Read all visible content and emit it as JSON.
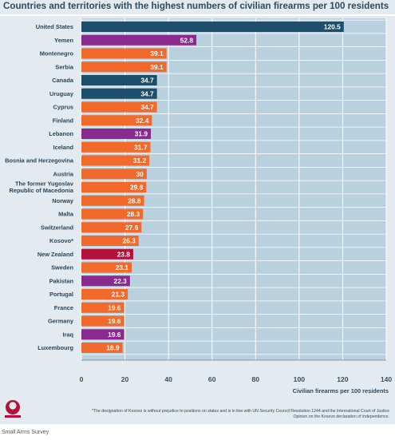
{
  "title": "Countries and territories with the highest numbers of civilian firearms per 100 residents",
  "footnote": "*The designation of Kosovo is without prejudice to positions on status and is in line with UN Security Council Resolution 1244 and the International Court of Justice Opinion on the Kosovo declaration of independence.",
  "source": "Small Arms Survey",
  "colors": {
    "navy": "#1d4e6b",
    "purple": "#8a2a8f",
    "orange": "#f26a2b",
    "crimson": "#b3103c",
    "plot_bg": "#b9d0de",
    "frame_bg": "#e3ebf1",
    "grid": "#ffffff"
  },
  "logo_icon": "small-arms-survey-logo-icon",
  "chart_data": {
    "type": "bar",
    "orientation": "horizontal",
    "title": "Countries and territories with the highest numbers of civilian firearms per 100 residents",
    "xlabel": "Civilian firearms per 100 residents",
    "ylabel": "",
    "xlim": [
      0,
      140
    ],
    "xticks": [
      0,
      20,
      40,
      60,
      80,
      100,
      120,
      140
    ],
    "grid": true,
    "legend": "none",
    "categories": [
      "United States",
      "Yemen",
      "Montenegro",
      "Serbia",
      "Canada",
      "Uruguay",
      "Cyprus",
      "Finland",
      "Lebanon",
      "Iceland",
      "Bosnia and Herzegovina",
      "Austria",
      "The former Yugoslav Republic of Macedonia",
      "Norway",
      "Malta",
      "Switzerland",
      "Kosovo*",
      "New Zealand",
      "Sweden",
      "Pakistan",
      "Portugal",
      "France",
      "Germany",
      "Iraq",
      "Luxembourg"
    ],
    "category_lines": [
      [
        "United States"
      ],
      [
        "Yemen"
      ],
      [
        "Montenegro"
      ],
      [
        "Serbia"
      ],
      [
        "Canada"
      ],
      [
        "Uruguay"
      ],
      [
        "Cyprus"
      ],
      [
        "Finland"
      ],
      [
        "Lebanon"
      ],
      [
        "Iceland"
      ],
      [
        "Bosnia and Herzegovina"
      ],
      [
        "Austria"
      ],
      [
        "The former Yugoslav",
        "Republic of Macedonia"
      ],
      [
        "Norway"
      ],
      [
        "Malta"
      ],
      [
        "Switzerland"
      ],
      [
        "Kosovo*"
      ],
      [
        "New Zealand"
      ],
      [
        "Sweden"
      ],
      [
        "Pakistan"
      ],
      [
        "Portugal"
      ],
      [
        "France"
      ],
      [
        "Germany"
      ],
      [
        "Iraq"
      ],
      [
        "Luxembourg"
      ]
    ],
    "values": [
      120.5,
      52.8,
      39.1,
      39.1,
      34.7,
      34.7,
      34.7,
      32.4,
      31.9,
      31.7,
      31.2,
      30,
      29.8,
      28.8,
      28.3,
      27.6,
      26.3,
      23.8,
      23.1,
      22.3,
      21.3,
      19.6,
      19.6,
      19.6,
      18.9
    ],
    "value_labels": [
      "120.5",
      "52.8",
      "39.1",
      "39.1",
      "34.7",
      "34.7",
      "34.7",
      "32.4",
      "31.9",
      "31.7",
      "31.2",
      "30",
      "29.8",
      "28.8",
      "28.3",
      "27.6",
      "26.3",
      "23.8",
      "23.1",
      "22.3",
      "21.3",
      "19.6",
      "19.6",
      "19.6",
      "18.9"
    ],
    "bar_colors": [
      "#1d4e6b",
      "#8a2a8f",
      "#f26a2b",
      "#f26a2b",
      "#1d4e6b",
      "#1d4e6b",
      "#f26a2b",
      "#f26a2b",
      "#8a2a8f",
      "#f26a2b",
      "#f26a2b",
      "#f26a2b",
      "#f26a2b",
      "#f26a2b",
      "#f26a2b",
      "#f26a2b",
      "#f26a2b",
      "#b3103c",
      "#f26a2b",
      "#8a2a8f",
      "#f26a2b",
      "#f26a2b",
      "#f26a2b",
      "#8a2a8f",
      "#f26a2b"
    ]
  }
}
